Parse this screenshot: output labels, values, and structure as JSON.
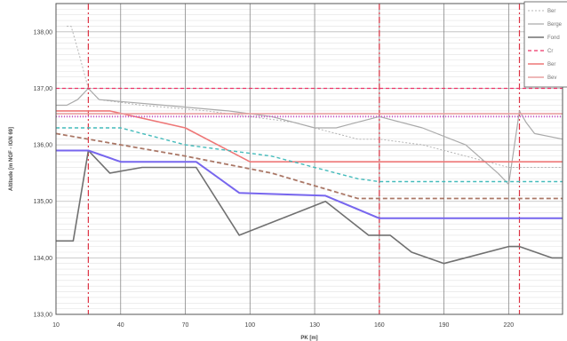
{
  "chart_data": {
    "type": "line",
    "title": "",
    "xlabel": "PK [m]",
    "ylabel": "Altitude [m NGF - IGN 69]",
    "xlim": [
      10,
      245
    ],
    "ylim": [
      133.0,
      138.5
    ],
    "x_ticks": [
      10,
      40,
      70,
      100,
      130,
      160,
      190,
      220
    ],
    "x_tick_labels": [
      "10",
      "40",
      "70",
      "100",
      "130",
      "160",
      "190",
      "220"
    ],
    "y_ticks": [
      133.0,
      134.0,
      135.0,
      136.0,
      137.0,
      138.0
    ],
    "y_tick_labels": [
      "133,00",
      "134,00",
      "135,00",
      "136,00",
      "137,00",
      "138,00"
    ],
    "grid": true,
    "legend_position": "top-right",
    "vlines": [
      {
        "x": 25,
        "color": "#dd3344"
      },
      {
        "x": 160,
        "color": "#dd3344"
      },
      {
        "x": 225,
        "color": "#dd3344"
      }
    ],
    "series": [
      {
        "name": "Ber",
        "color": "#b5b5b5",
        "dash": "2,2",
        "width": 1,
        "x": [
          15,
          17,
          20,
          25,
          30,
          50,
          80,
          100,
          120,
          130,
          140,
          150,
          160,
          180,
          200,
          220,
          225,
          245
        ],
        "y": [
          138.1,
          138.1,
          137.7,
          137.0,
          136.8,
          136.7,
          136.6,
          136.5,
          136.4,
          136.3,
          136.2,
          136.1,
          136.1,
          136.0,
          135.8,
          135.6,
          135.6,
          135.6
        ]
      },
      {
        "name": "Berge",
        "color": "#aaaaaa",
        "dash": "",
        "width": 1.2,
        "x": [
          10,
          15,
          20,
          25,
          30,
          60,
          90,
          110,
          120,
          130,
          140,
          150,
          160,
          180,
          200,
          215,
          220,
          225,
          228,
          232,
          245
        ],
        "y": [
          136.7,
          136.7,
          136.8,
          137.0,
          136.8,
          136.7,
          136.6,
          136.5,
          136.4,
          136.3,
          136.3,
          136.4,
          136.5,
          136.3,
          136.0,
          135.5,
          135.3,
          136.6,
          136.4,
          136.2,
          136.1
        ]
      },
      {
        "name": "Fond",
        "color": "#707070",
        "dash": "",
        "width": 1.6,
        "x": [
          10,
          18,
          25,
          35,
          50,
          75,
          95,
          135,
          155,
          160,
          165,
          175,
          190,
          220,
          225,
          240,
          245
        ],
        "y": [
          134.3,
          134.3,
          135.9,
          135.5,
          135.6,
          135.6,
          134.4,
          135.0,
          134.4,
          134.4,
          134.4,
          134.1,
          133.9,
          134.2,
          134.2,
          134.0,
          134.0
        ]
      },
      {
        "name": "Cr",
        "color": "#ee3366",
        "dash": "4,3",
        "width": 1.2,
        "x": [
          10,
          245
        ],
        "y": [
          137.0,
          137.0
        ]
      },
      {
        "name": "Ber",
        "color": "#ee7777",
        "dash": "",
        "width": 1.6,
        "x": [
          10,
          35,
          70,
          100,
          150,
          245
        ],
        "y": [
          136.6,
          136.6,
          136.3,
          135.7,
          135.7,
          135.7
        ]
      },
      {
        "name": "Bev",
        "color": "#e8a0a0",
        "dash": "",
        "width": 1.6,
        "x": [
          10,
          245
        ],
        "y": [
          136.55,
          136.55
        ]
      },
      {
        "name": "",
        "color": "#cc55cc",
        "dash": "1,2",
        "width": 2,
        "x": [
          10,
          245
        ],
        "y": [
          136.5,
          136.5
        ]
      },
      {
        "name": "",
        "color": "#44bbbb",
        "dash": "4,3",
        "width": 1.4,
        "x": [
          10,
          40,
          70,
          110,
          150,
          160,
          245
        ],
        "y": [
          136.3,
          136.3,
          136.0,
          135.8,
          135.4,
          135.35,
          135.35
        ]
      },
      {
        "name": "",
        "color": "#aa7766",
        "dash": "5,3",
        "width": 1.8,
        "x": [
          10,
          40,
          70,
          110,
          150,
          160,
          245
        ],
        "y": [
          136.2,
          136.0,
          135.8,
          135.5,
          135.05,
          135.05,
          135.05
        ]
      },
      {
        "name": "",
        "color": "#7766ee",
        "dash": "",
        "width": 2,
        "x": [
          10,
          25,
          40,
          75,
          95,
          135,
          160,
          245
        ],
        "y": [
          135.9,
          135.9,
          135.7,
          135.7,
          135.15,
          135.1,
          134.7,
          134.7
        ]
      }
    ]
  }
}
